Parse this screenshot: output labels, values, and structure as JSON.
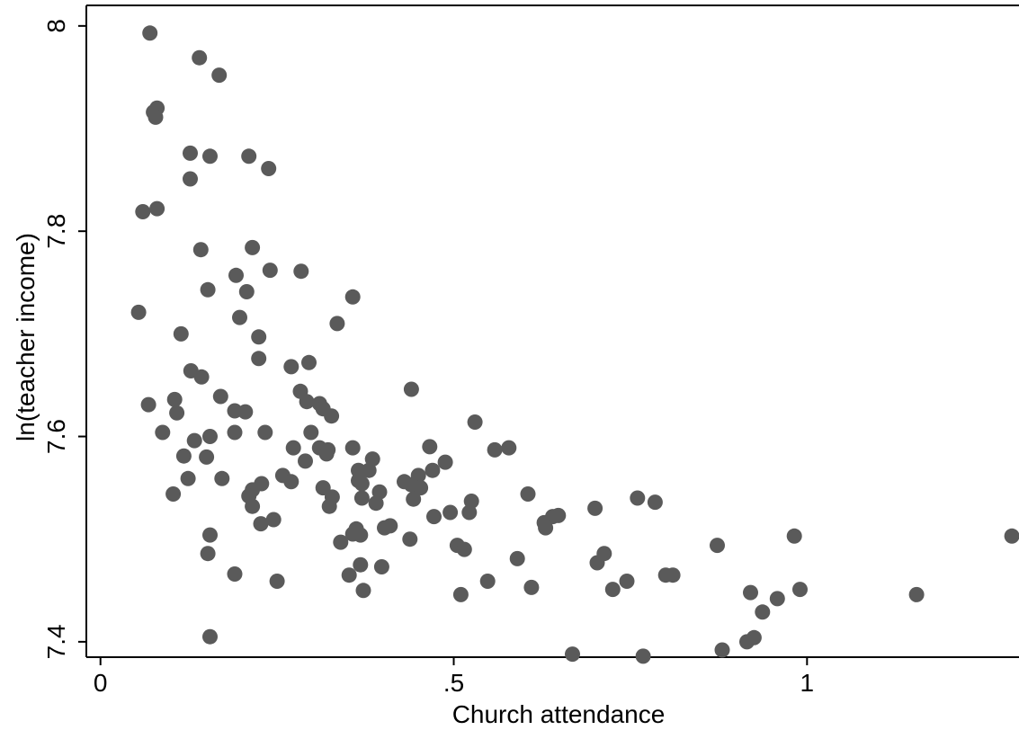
{
  "chart_data": {
    "type": "scatter",
    "title": "",
    "xlabel": "Church attendance",
    "ylabel": "ln(teacher income)",
    "xlim": [
      -0.02,
      1.3
    ],
    "ylim": [
      7.385,
      8.02
    ],
    "x_ticks": [
      0,
      0.5,
      1
    ],
    "x_tick_labels": [
      "0",
      ".5",
      "1"
    ],
    "y_ticks": [
      7.4,
      7.6,
      7.8,
      8
    ],
    "y_tick_labels": [
      "7.4",
      "7.6",
      "7.8",
      "8"
    ],
    "grid": false,
    "legend": "none",
    "marker_color": "#5a5a5a",
    "points": [
      [
        0.07,
        7.993
      ],
      [
        0.14,
        7.969
      ],
      [
        0.168,
        7.952
      ],
      [
        0.075,
        7.916
      ],
      [
        0.08,
        7.92
      ],
      [
        0.078,
        7.911
      ],
      [
        0.127,
        7.876
      ],
      [
        0.155,
        7.873
      ],
      [
        0.21,
        7.873
      ],
      [
        0.238,
        7.861
      ],
      [
        0.127,
        7.851
      ],
      [
        0.08,
        7.822
      ],
      [
        0.06,
        7.819
      ],
      [
        0.215,
        7.784
      ],
      [
        0.142,
        7.782
      ],
      [
        0.24,
        7.762
      ],
      [
        0.284,
        7.761
      ],
      [
        0.192,
        7.757
      ],
      [
        0.152,
        7.743
      ],
      [
        0.207,
        7.741
      ],
      [
        0.357,
        7.736
      ],
      [
        0.054,
        7.721
      ],
      [
        0.197,
        7.716
      ],
      [
        0.335,
        7.71
      ],
      [
        0.114,
        7.7
      ],
      [
        0.224,
        7.697
      ],
      [
        0.224,
        7.676
      ],
      [
        0.295,
        7.672
      ],
      [
        0.27,
        7.668
      ],
      [
        0.128,
        7.664
      ],
      [
        0.143,
        7.658
      ],
      [
        0.44,
        7.646
      ],
      [
        0.283,
        7.644
      ],
      [
        0.17,
        7.639
      ],
      [
        0.105,
        7.636
      ],
      [
        0.292,
        7.634
      ],
      [
        0.31,
        7.632
      ],
      [
        0.068,
        7.631
      ],
      [
        0.315,
        7.627
      ],
      [
        0.19,
        7.625
      ],
      [
        0.205,
        7.624
      ],
      [
        0.108,
        7.623
      ],
      [
        0.327,
        7.62
      ],
      [
        0.53,
        7.614
      ],
      [
        0.088,
        7.604
      ],
      [
        0.233,
        7.604
      ],
      [
        0.19,
        7.604
      ],
      [
        0.298,
        7.604
      ],
      [
        0.155,
        7.6
      ],
      [
        0.133,
        7.596
      ],
      [
        0.466,
        7.59
      ],
      [
        0.578,
        7.589
      ],
      [
        0.273,
        7.589
      ],
      [
        0.357,
        7.589
      ],
      [
        0.31,
        7.589
      ],
      [
        0.322,
        7.587
      ],
      [
        0.558,
        7.587
      ],
      [
        0.118,
        7.581
      ],
      [
        0.15,
        7.58
      ],
      [
        0.385,
        7.578
      ],
      [
        0.32,
        7.583
      ],
      [
        0.488,
        7.575
      ],
      [
        0.29,
        7.576
      ],
      [
        0.38,
        7.567
      ],
      [
        0.365,
        7.567
      ],
      [
        0.47,
        7.567
      ],
      [
        0.45,
        7.562
      ],
      [
        0.258,
        7.562
      ],
      [
        0.172,
        7.559
      ],
      [
        0.124,
        7.559
      ],
      [
        0.27,
        7.556
      ],
      [
        0.228,
        7.554
      ],
      [
        0.365,
        7.557
      ],
      [
        0.43,
        7.556
      ],
      [
        0.44,
        7.553
      ],
      [
        0.37,
        7.554
      ],
      [
        0.453,
        7.55
      ],
      [
        0.315,
        7.55
      ],
      [
        0.215,
        7.548
      ],
      [
        0.328,
        7.541
      ],
      [
        0.395,
        7.546
      ],
      [
        0.103,
        7.544
      ],
      [
        0.21,
        7.542
      ],
      [
        0.605,
        7.544
      ],
      [
        0.37,
        7.54
      ],
      [
        0.443,
        7.539
      ],
      [
        0.76,
        7.54
      ],
      [
        0.785,
        7.536
      ],
      [
        0.525,
        7.537
      ],
      [
        0.215,
        7.532
      ],
      [
        0.324,
        7.532
      ],
      [
        0.39,
        7.535
      ],
      [
        0.7,
        7.53
      ],
      [
        0.495,
        7.526
      ],
      [
        0.522,
        7.526
      ],
      [
        0.648,
        7.523
      ],
      [
        0.64,
        7.522
      ],
      [
        0.472,
        7.522
      ],
      [
        0.245,
        7.519
      ],
      [
        0.227,
        7.515
      ],
      [
        0.628,
        7.516
      ],
      [
        0.41,
        7.513
      ],
      [
        0.362,
        7.51
      ],
      [
        0.63,
        7.511
      ],
      [
        0.402,
        7.511
      ],
      [
        0.368,
        7.504
      ],
      [
        0.357,
        7.505
      ],
      [
        0.155,
        7.504
      ],
      [
        0.982,
        7.503
      ],
      [
        1.29,
        7.503
      ],
      [
        0.34,
        7.497
      ],
      [
        0.438,
        7.5
      ],
      [
        0.505,
        7.494
      ],
      [
        0.873,
        7.494
      ],
      [
        0.515,
        7.49
      ],
      [
        0.713,
        7.486
      ],
      [
        0.152,
        7.486
      ],
      [
        0.59,
        7.481
      ],
      [
        0.703,
        7.477
      ],
      [
        0.368,
        7.475
      ],
      [
        0.398,
        7.473
      ],
      [
        0.19,
        7.466
      ],
      [
        0.352,
        7.465
      ],
      [
        0.81,
        7.465
      ],
      [
        0.8,
        7.465
      ],
      [
        0.745,
        7.459
      ],
      [
        0.548,
        7.459
      ],
      [
        0.25,
        7.459
      ],
      [
        0.61,
        7.453
      ],
      [
        0.725,
        7.451
      ],
      [
        0.99,
        7.451
      ],
      [
        0.372,
        7.45
      ],
      [
        0.92,
        7.448
      ],
      [
        1.155,
        7.446
      ],
      [
        0.51,
        7.446
      ],
      [
        0.958,
        7.442
      ],
      [
        0.937,
        7.429
      ],
      [
        0.155,
        7.405
      ],
      [
        0.925,
        7.404
      ],
      [
        0.915,
        7.4
      ],
      [
        0.88,
        7.392
      ],
      [
        0.668,
        7.388
      ],
      [
        0.768,
        7.386
      ]
    ]
  }
}
